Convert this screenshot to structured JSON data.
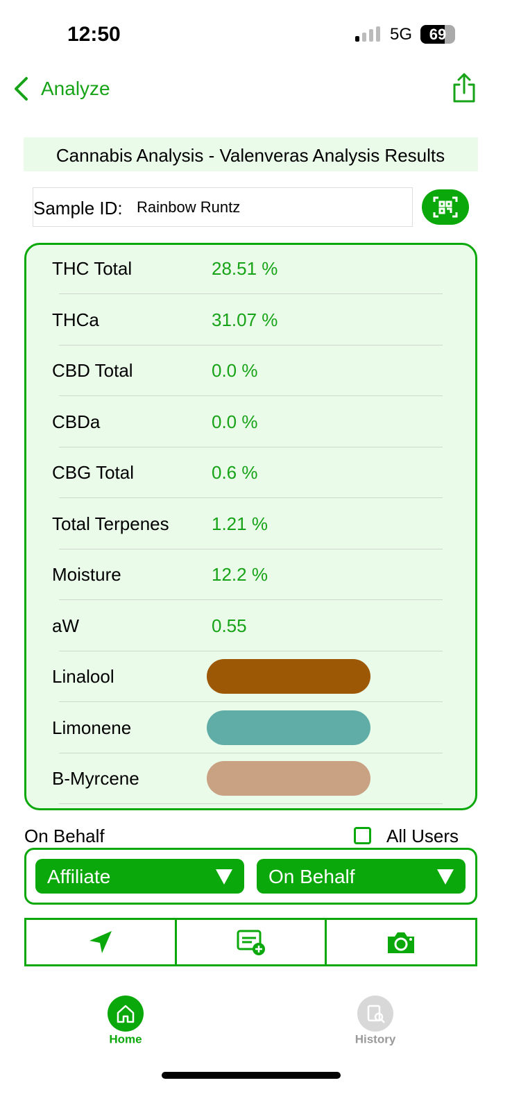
{
  "status_bar": {
    "time": "12:50",
    "network": "5G",
    "battery": "69"
  },
  "nav": {
    "back": "Analyze"
  },
  "header": {
    "title": "Cannabis Analysis - Valenveras Analysis Results"
  },
  "sample": {
    "label": "Sample ID:",
    "value": "Rainbow Runtz"
  },
  "results": [
    {
      "label": "THC Total",
      "value": "28.51 %"
    },
    {
      "label": "THCa",
      "value": "31.07 %"
    },
    {
      "label": "CBD Total",
      "value": "0.0 %"
    },
    {
      "label": "CBDa",
      "value": "0.0 %"
    },
    {
      "label": "CBG Total",
      "value": "0.6 %"
    },
    {
      "label": "Total Terpenes",
      "value": "1.21 %"
    },
    {
      "label": "Moisture",
      "value": "12.2 %"
    },
    {
      "label": "aW",
      "value": "0.55"
    },
    {
      "label": "Linalool",
      "color": "#9c5805"
    },
    {
      "label": "Limonene",
      "color": "#60aca6"
    },
    {
      "label": "B-Myrcene",
      "color": "#c9a283"
    }
  ],
  "on_behalf": {
    "label": "On Behalf",
    "checkbox": "All Users",
    "dropdowns": [
      "Affiliate",
      "On Behalf"
    ]
  },
  "tabs": [
    {
      "label": "Home",
      "active": true
    },
    {
      "label": "History",
      "active": false
    }
  ]
}
